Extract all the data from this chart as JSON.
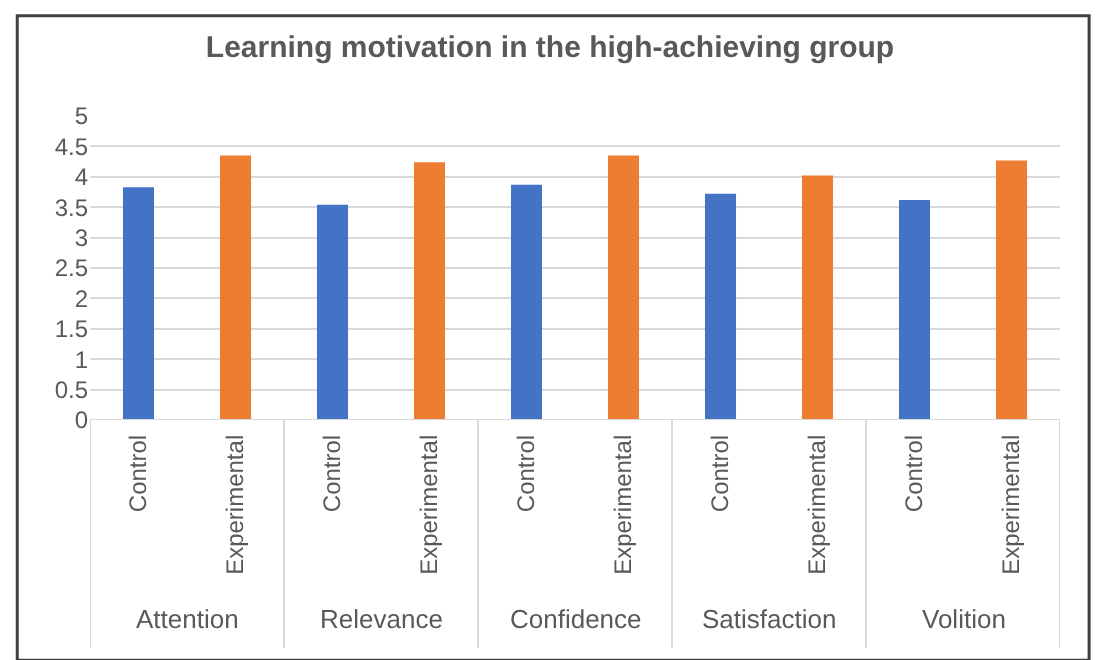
{
  "chart_data": {
    "type": "bar",
    "title": "Learning motivation in the high-achieving group",
    "categories": [
      "Control",
      "Experimental",
      "Control",
      "Experimental",
      "Control",
      "Experimental",
      "Control",
      "Experimental",
      "Control",
      "Experimental"
    ],
    "values": [
      3.83,
      4.35,
      3.54,
      4.24,
      3.87,
      4.35,
      3.72,
      4.02,
      3.62,
      4.27
    ],
    "colors": [
      "#4472c4",
      "#ed7d31",
      "#4472c4",
      "#ed7d31",
      "#4472c4",
      "#ed7d31",
      "#4472c4",
      "#ed7d31",
      "#4472c4",
      "#ed7d31"
    ],
    "annotations": [
      "Attention",
      "Relevance",
      "Confidence",
      "Satisfaction",
      "Volition"
    ],
    "ylim": [
      0,
      5
    ],
    "yticks": [
      0,
      0.5,
      1,
      1.5,
      2,
      2.5,
      3,
      3.5,
      4,
      4.5,
      5
    ],
    "grid": "y"
  }
}
